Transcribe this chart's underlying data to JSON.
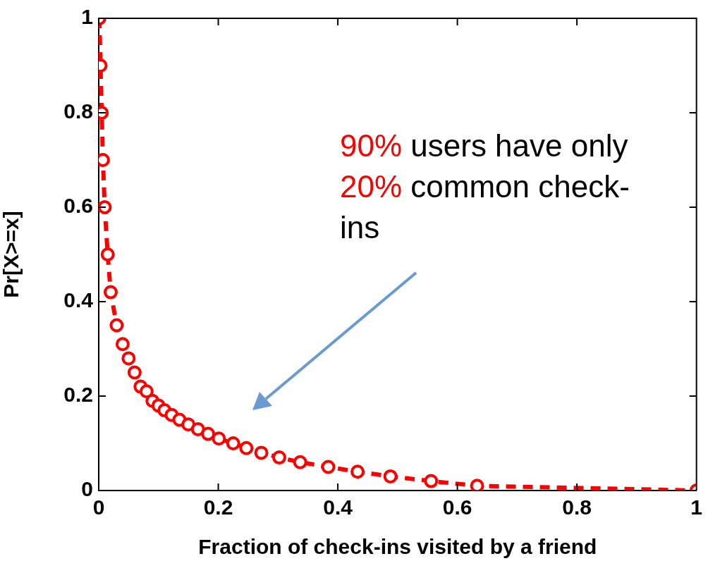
{
  "chart_data": {
    "type": "line",
    "xlabel": "Fraction of check-ins visited by a friend",
    "ylabel": "Pr[X>=x]",
    "series": [
      {
        "color": "#ff0000",
        "x": [
          0.001,
          0.003,
          0.005,
          0.007,
          0.01,
          0.015,
          0.02,
          0.03,
          0.04,
          0.05,
          0.06,
          0.07,
          0.08,
          0.09,
          0.1,
          0.11,
          0.122,
          0.135,
          0.15,
          0.166,
          0.183,
          0.201,
          0.225,
          0.247,
          0.272,
          0.302,
          0.337,
          0.384,
          0.433,
          0.488,
          0.556,
          0.633,
          1.0
        ],
        "values": [
          1.0,
          0.9,
          0.8,
          0.7,
          0.6,
          0.5,
          0.42,
          0.35,
          0.31,
          0.28,
          0.25,
          0.22,
          0.21,
          0.19,
          0.18,
          0.17,
          0.16,
          0.15,
          0.14,
          0.13,
          0.12,
          0.11,
          0.1,
          0.09,
          0.08,
          0.07,
          0.06,
          0.05,
          0.04,
          0.03,
          0.02,
          0.01,
          0.0
        ]
      }
    ],
    "xlim": [
      0,
      1
    ],
    "xticks": [
      0,
      0.2,
      0.4,
      0.6,
      0.8,
      1
    ],
    "ylim": [
      0,
      1
    ],
    "yticks": [
      0,
      0.2,
      0.4,
      0.6,
      0.8,
      1
    ],
    "grid": false,
    "legend": false,
    "marker": "circle",
    "line_style": "dashed",
    "annotations": [
      "90% users have only 20% common check-ins"
    ]
  }
}
